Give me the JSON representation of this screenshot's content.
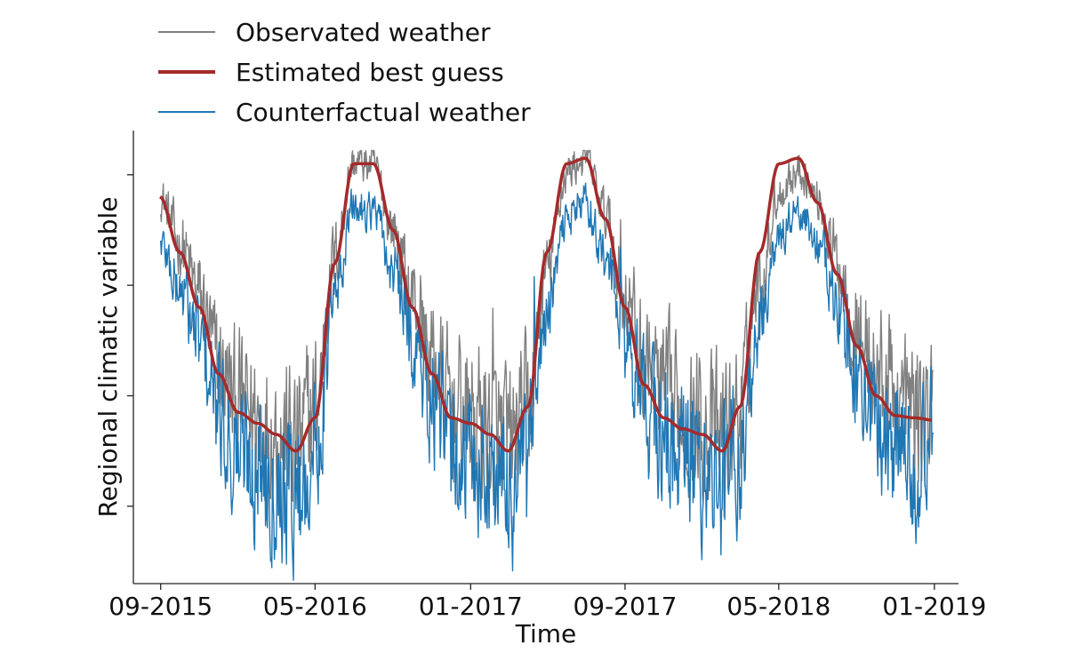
{
  "chart_data": {
    "type": "line",
    "xlabel": "Time",
    "ylabel": "Regional climatic variable",
    "x_tick_labels": [
      "09-2015",
      "05-2016",
      "01-2017",
      "09-2017",
      "05-2018",
      "01-2019"
    ],
    "x_ticks": [
      "2015-09-01",
      "2016-05-01",
      "2017-01-01",
      "2017-09-01",
      "2018-05-01",
      "2019-01-01"
    ],
    "xlim": [
      "2015-07-20",
      "2019-02-08"
    ],
    "y_tick_labels": [
      "",
      "",
      "",
      ""
    ],
    "y_ticks": [
      -1,
      0,
      1,
      2
    ],
    "ylim": [
      -1.7,
      2.4
    ],
    "grid": false,
    "legend_position": "top-left",
    "series": [
      {
        "name": "Observated weather",
        "color": "#808080",
        "style": "noisy",
        "x": [
          "2015-10-01",
          "2016-01-01",
          "2016-04-01",
          "2016-07-01",
          "2016-10-01",
          "2017-01-01",
          "2017-04-01",
          "2017-07-01",
          "2017-10-01",
          "2018-01-01",
          "2018-04-01",
          "2018-07-01",
          "2018-10-01",
          "2018-12-30"
        ],
        "y": [
          1.8,
          0.3,
          -0.1,
          2.15,
          1.45,
          0.1,
          -0.4,
          2.1,
          1.4,
          0.3,
          -0.3,
          2.0,
          1.4,
          -0.1
        ]
      },
      {
        "name": "Estimated best guess",
        "color": "#a52a2a",
        "style": "smooth",
        "x": [
          "2015-08-31",
          "2015-10-01",
          "2015-11-01",
          "2015-12-01",
          "2016-01-01",
          "2016-02-01",
          "2016-03-01",
          "2016-04-01",
          "2016-05-01",
          "2016-06-01",
          "2016-07-01",
          "2016-08-01",
          "2016-09-01",
          "2016-10-01",
          "2016-11-01",
          "2016-12-01",
          "2017-01-01",
          "2017-02-01",
          "2017-03-01",
          "2017-04-01",
          "2017-05-01",
          "2017-06-01",
          "2017-07-01",
          "2017-08-01",
          "2017-09-01",
          "2017-10-01",
          "2017-11-01",
          "2017-12-01",
          "2018-01-01",
          "2018-02-01",
          "2018-03-01",
          "2018-04-01",
          "2018-05-01",
          "2018-06-01",
          "2018-07-01",
          "2018-08-01",
          "2018-09-01",
          "2018-10-01",
          "2018-11-01",
          "2018-12-01",
          "2018-12-30"
        ],
        "y": [
          1.8,
          1.3,
          0.8,
          0.2,
          -0.15,
          -0.25,
          -0.35,
          -0.5,
          -0.2,
          1.2,
          2.1,
          2.1,
          1.5,
          0.8,
          0.2,
          -0.2,
          -0.25,
          -0.35,
          -0.5,
          -0.1,
          1.3,
          2.1,
          2.15,
          1.6,
          0.8,
          0.1,
          -0.2,
          -0.3,
          -0.35,
          -0.5,
          -0.1,
          1.3,
          2.1,
          2.15,
          1.75,
          1.1,
          0.45,
          0.0,
          -0.18,
          -0.2,
          -0.22
        ]
      },
      {
        "name": "Counterfactual weather",
        "color": "#1f77b4",
        "style": "noisy",
        "x": [
          "2015-10-01",
          "2016-01-01",
          "2016-04-01",
          "2016-07-01",
          "2016-10-01",
          "2017-01-01",
          "2017-04-01",
          "2017-07-01",
          "2017-10-01",
          "2018-01-01",
          "2018-04-01",
          "2018-07-01",
          "2018-10-01",
          "2018-12-30"
        ],
        "y": [
          1.4,
          -0.2,
          -0.6,
          1.8,
          1.1,
          -0.2,
          -0.8,
          1.8,
          1.0,
          -0.1,
          -0.7,
          1.7,
          1.0,
          -0.4
        ]
      }
    ]
  }
}
